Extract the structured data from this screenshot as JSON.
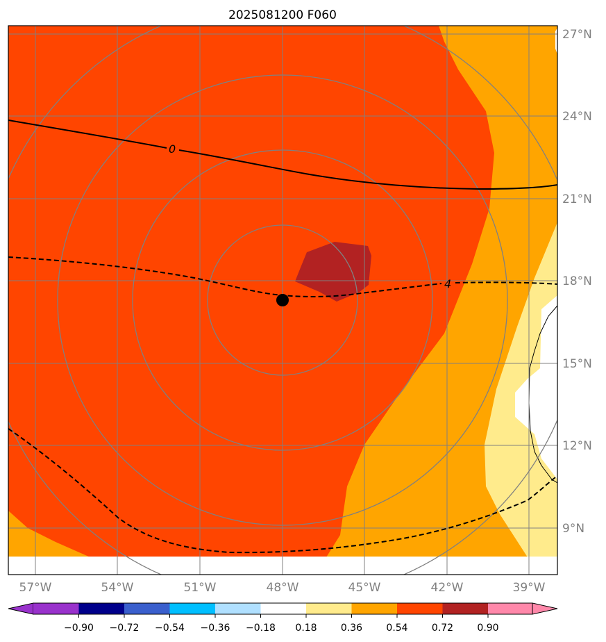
{
  "title": "2025081200 F060",
  "map": {
    "lon_labels": [
      "57°W",
      "54°W",
      "51°W",
      "48°W",
      "45°W",
      "42°W",
      "39°W"
    ],
    "lat_labels": [
      "27°N",
      "24°N",
      "21°N",
      "18°N",
      "15°N",
      "12°N",
      "9°N"
    ],
    "contour_labels": [
      "0",
      "4"
    ],
    "center_marker": {
      "lon": -48.0,
      "lat": 17.3
    },
    "fill_colors": {
      "dark_red": "#b22222",
      "orange_red": "#ff4500",
      "orange": "#ffa500",
      "light_yellow": "#ffeb8c",
      "white": "#ffffff",
      "grid": "#808080"
    }
  },
  "colorbar": {
    "levels": [
      "−0.90",
      "−0.72",
      "−0.54",
      "−0.36",
      "−0.18",
      "0.18",
      "0.36",
      "0.54",
      "0.72",
      "0.90"
    ],
    "colors": [
      "#9932cc",
      "#00008b",
      "#3a5fcd",
      "#00bfff",
      "#b0e0ff",
      "#ffffff",
      "#ffeb8c",
      "#ffa500",
      "#ff4500",
      "#b22222",
      "#ff88aa"
    ]
  }
}
